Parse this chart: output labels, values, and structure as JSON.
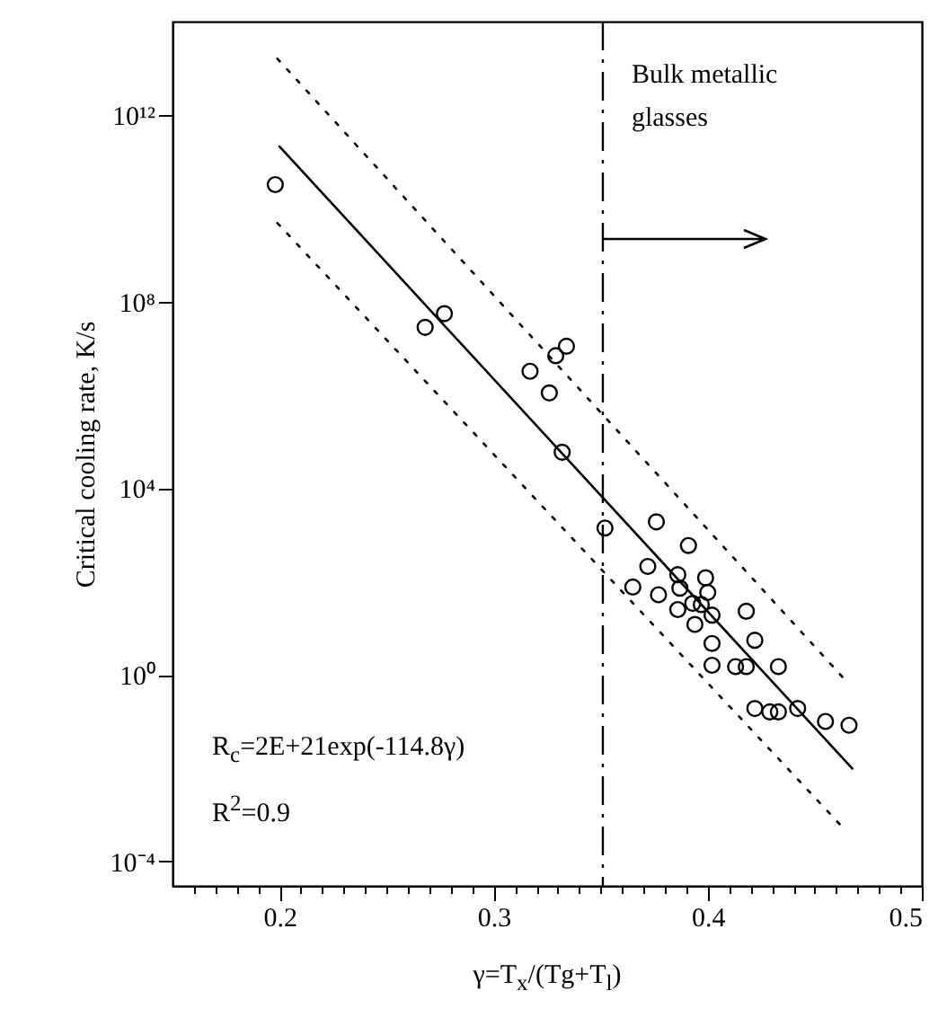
{
  "chart_data": {
    "type": "scatter",
    "xlabel": "γ=T$_{x}$/(Tg+T$_{l}$)",
    "ylabel": "Critical cooling rate, K/s",
    "log": "y",
    "xlim": [
      0.15,
      0.5
    ],
    "xticks": [
      {
        "value": 0.16,
        "label": null
      },
      {
        "value": 0.17,
        "label": null
      },
      {
        "value": 0.18,
        "label": null
      },
      {
        "value": 0.19,
        "label": null
      },
      0.2,
      {
        "value": 0.21,
        "label": null
      },
      {
        "value": 0.22,
        "label": null
      },
      {
        "value": 0.23,
        "label": null
      },
      {
        "value": 0.24,
        "label": null
      },
      {
        "value": 0.25,
        "label": null
      },
      {
        "value": 0.26,
        "label": null
      },
      {
        "value": 0.27,
        "label": null
      },
      {
        "value": 0.28,
        "label": null
      },
      {
        "value": 0.29,
        "label": null
      },
      0.3,
      {
        "value": 0.31,
        "label": null
      },
      {
        "value": 0.32,
        "label": null
      },
      {
        "value": 0.33,
        "label": null
      },
      {
        "value": 0.34,
        "label": null
      },
      {
        "value": 0.35,
        "label": null
      },
      {
        "value": 0.36,
        "label": null
      },
      {
        "value": 0.37,
        "label": null
      },
      {
        "value": 0.38,
        "label": null
      },
      {
        "value": 0.39,
        "label": null
      },
      0.4,
      {
        "value": 0.41,
        "label": null
      },
      {
        "value": 0.42,
        "label": null
      },
      {
        "value": 0.43,
        "label": null
      },
      {
        "value": 0.44,
        "label": null
      },
      {
        "value": 0.45,
        "label": null
      },
      {
        "value": 0.46,
        "label": null
      },
      {
        "value": 0.47,
        "label": null
      },
      {
        "value": 0.48,
        "label": null
      },
      {
        "value": 0.49,
        "label": null
      },
      0.5
    ],
    "ylim": [
      3e-05,
      100000000000000.0
    ],
    "yticks": [
      {
        "value": 0.0001,
        "label": "10⁻⁴"
      },
      {
        "value": 1,
        "label": "10⁰"
      },
      {
        "value": 10000.0,
        "label": "10⁴"
      },
      {
        "value": 100000000.0,
        "label": "10⁸"
      },
      {
        "value": 1000000000000.0,
        "label": "10¹²"
      }
    ],
    "series": [
      {
        "marker": "circle",
        "color": "#000000",
        "x": [
          0.198,
          0.268,
          0.277,
          0.317,
          0.326,
          0.329,
          0.334,
          0.332,
          0.352,
          0.376,
          0.391,
          0.372,
          0.365,
          0.377,
          0.386,
          0.387,
          0.399,
          0.4,
          0.393,
          0.386,
          0.397,
          0.402,
          0.394,
          0.402,
          0.418,
          0.422,
          0.402,
          0.413,
          0.418,
          0.433,
          0.422,
          0.429,
          0.433,
          0.442,
          0.455,
          0.466
        ],
        "values": [
          32000000000.0,
          28000000.0,
          55000000.0,
          3200000.0,
          1100000.0,
          6900000.0,
          11000000.0,
          59000.0,
          1400,
          1900,
          590,
          210,
          76,
          52,
          140,
          72,
          120,
          58,
          34,
          25,
          32,
          19,
          12,
          4.7,
          23,
          5.5,
          1.6,
          1.5,
          1.5,
          1.5,
          0.19,
          0.16,
          0.16,
          0.19,
          0.1,
          0.083
        ]
      },
      {
        "type": "line",
        "color": "#000000",
        "line_style": "solid",
        "x": [
          0.2,
          0.4675
        ],
        "values": [
          210000000000.0,
          0.0098
        ]
      },
      {
        "type": "line",
        "color": "#000000",
        "line_style": "dotted",
        "x": [
          0.199,
          0.465
        ],
        "values": [
          16000000000000.0,
          0.71
        ]
      },
      {
        "type": "line",
        "color": "#000000",
        "line_style": "dotted",
        "x": [
          0.199,
          0.463
        ],
        "values": [
          4800000000.0,
          0.00054
        ]
      }
    ],
    "ref_lines": [
      {
        "axis": "x",
        "value": 0.351,
        "label": "Bulk metallic\nglasses",
        "line_style": "dashed",
        "color": "#000000"
      }
    ],
    "annotations": [
      "R$_{c}$=2E+21exp(-114.8γ)",
      "R$^{2}$=0.9"
    ]
  }
}
